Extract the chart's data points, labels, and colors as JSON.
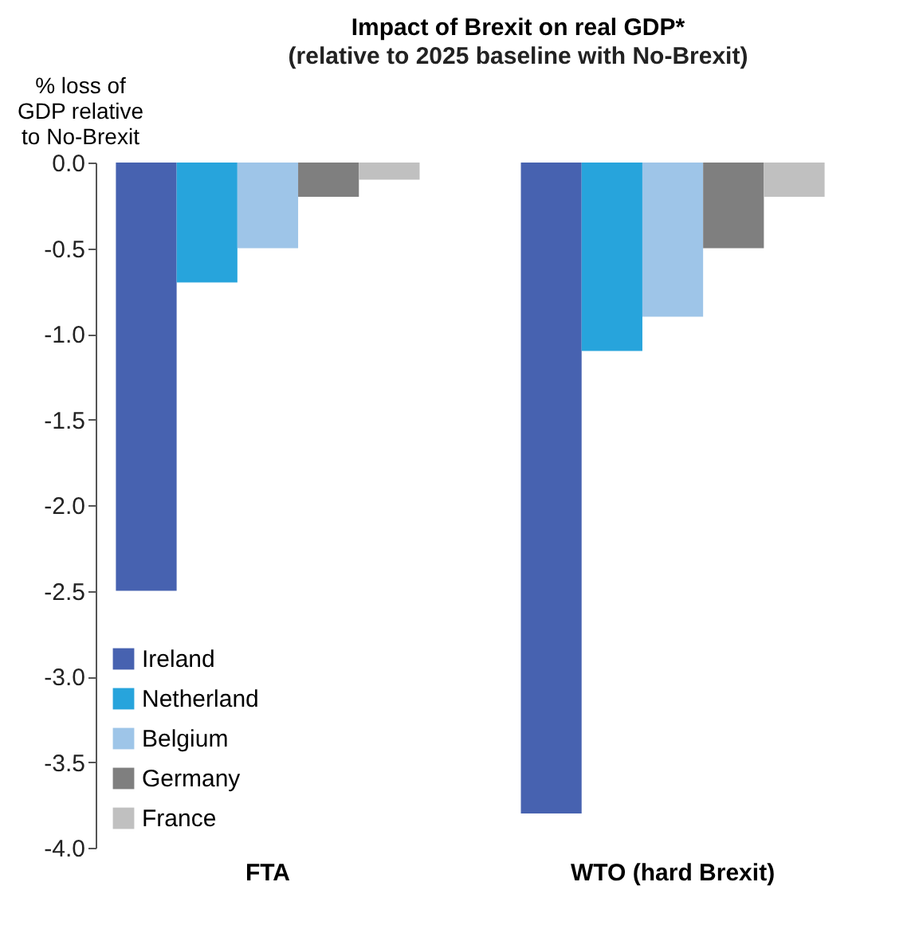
{
  "chart_data": {
    "type": "bar",
    "title": "Impact of Brexit on real GDP*",
    "subtitle": "(relative to 2025 baseline with No-Brexit)",
    "ylabel": "% loss of GDP relative to No-Brexit",
    "categories": [
      "FTA",
      "WTO (hard Brexit)"
    ],
    "series": [
      {
        "name": "Ireland",
        "color": "#4762b0",
        "values": [
          -2.5,
          -3.8
        ]
      },
      {
        "name": "Netherland",
        "color": "#27a4dc",
        "values": [
          -0.7,
          -1.1
        ]
      },
      {
        "name": "Belgium",
        "color": "#9ec5e8",
        "values": [
          -0.5,
          -0.9
        ]
      },
      {
        "name": "Germany",
        "color": "#7f7f7f",
        "values": [
          -0.2,
          -0.5
        ]
      },
      {
        "name": "France",
        "color": "#c0c0c0",
        "values": [
          -0.1,
          -0.2
        ]
      }
    ],
    "ylim": [
      -4.0,
      0.0
    ],
    "yticks": [
      {
        "value": 0,
        "label": "0.0"
      },
      {
        "value": -0.5,
        "label": "-0.5"
      },
      {
        "value": -1,
        "label": "-1.0"
      },
      {
        "value": -1.5,
        "label": "-1.5"
      },
      {
        "value": -2,
        "label": "-2.0"
      },
      {
        "value": -2.5,
        "label": "-2.5"
      },
      {
        "value": -3,
        "label": "-3.0"
      },
      {
        "value": -3.5,
        "label": "-3.5"
      },
      {
        "value": -4,
        "label": "-4.0"
      }
    ],
    "grid": false,
    "legend": "bottom left"
  }
}
